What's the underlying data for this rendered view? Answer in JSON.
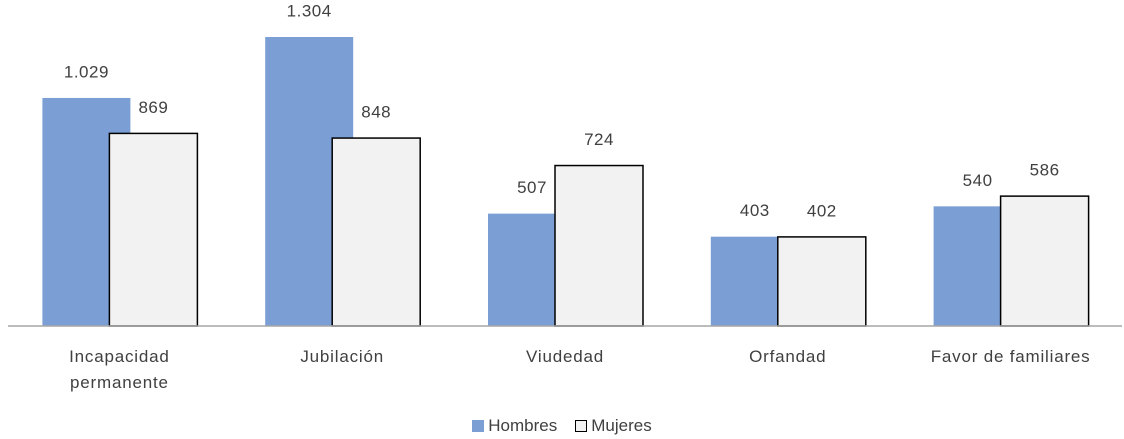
{
  "chart_data": {
    "type": "bar",
    "categories": [
      "Incapacidad permanente",
      "Jubilación",
      "Viudedad",
      "Orfandad",
      "Favor de familiares"
    ],
    "series": [
      {
        "name": "Hombres",
        "color": "#7b9fd4",
        "values": [
          1029,
          1304,
          507,
          403,
          540
        ],
        "value_labels": [
          "1.029",
          "1.304",
          "507",
          "403",
          "540"
        ]
      },
      {
        "name": "Mujeres",
        "color": "#f2f2f2",
        "values": [
          869,
          848,
          724,
          402,
          586
        ],
        "value_labels": [
          "869",
          "848",
          "724",
          "402",
          "586"
        ]
      }
    ],
    "legend": "bottom"
  }
}
